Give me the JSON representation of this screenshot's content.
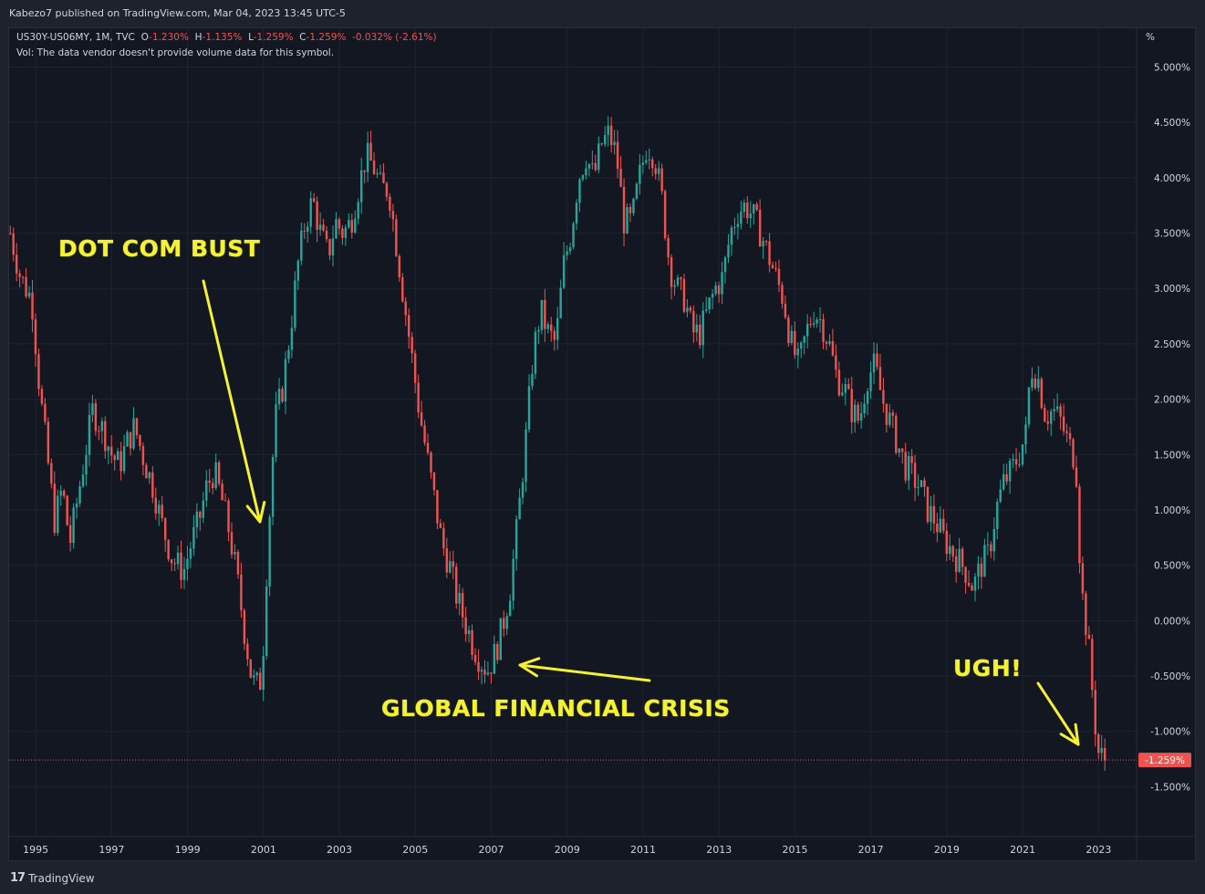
{
  "header": {
    "published_text": "Kabezo7 published on TradingView.com, Mar 04, 2023 13:45 UTC-5"
  },
  "legend": {
    "symbol": "US30Y-US06MY, 1M, TVC",
    "open_label": "O",
    "open_value": "-1.230%",
    "high_label": "H",
    "high_value": "-1.135%",
    "low_label": "L",
    "low_value": "-1.259%",
    "close_label": "C",
    "close_value": "-1.259%",
    "change": "-0.032% (-2.61%)",
    "volume_note": "Vol: The data vendor doesn't provide volume data for this symbol."
  },
  "axis": {
    "unit": "%",
    "current_price_label": "-1.259%"
  },
  "annotations": {
    "dot_com": "DOT COM BUST",
    "gfc": "GLOBAL FINANCIAL CRISIS",
    "ugh": "UGH!"
  },
  "footer": {
    "brand": "TradingView",
    "logo": "17"
  },
  "colors": {
    "up": "#26a69a",
    "down": "#ef5350",
    "annotation": "#f5f230",
    "background": "#131722",
    "grid": "#1f2330"
  },
  "chart_data": {
    "type": "candlestick",
    "title": "US30Y-US06MY, 1M, TVC",
    "ylabel": "%",
    "ylim": [
      -1.95,
      5.35
    ],
    "xlim": [
      1994.3,
      2024.0
    ],
    "x_ticks": [
      1995,
      1997,
      1999,
      2001,
      2003,
      2005,
      2007,
      2009,
      2011,
      2013,
      2015,
      2017,
      2019,
      2021,
      2023
    ],
    "x_tick_labels": [
      "1995",
      "1997",
      "1999",
      "2001",
      "2003",
      "2005",
      "2007",
      "2009",
      "2011",
      "2013",
      "2015",
      "2017",
      "2019",
      "2021",
      "2023"
    ],
    "y_ticks": [
      5.0,
      4.5,
      4.0,
      3.5,
      3.0,
      2.5,
      2.0,
      1.5,
      1.0,
      0.5,
      0.0,
      -0.5,
      -1.0,
      -1.5
    ],
    "y_tick_labels": [
      "5.000%",
      "4.500%",
      "4.000%",
      "3.500%",
      "3.000%",
      "2.500%",
      "2.000%",
      "1.500%",
      "1.000%",
      "0.500%",
      "0.000%",
      "-0.500%",
      "-1.000%",
      "-1.500%"
    ],
    "current_value": -1.259,
    "series": [
      {
        "name": "US30Y-US06MY",
        "points": [
          [
            1994.33,
            3.5
          ],
          [
            1994.6,
            3.1
          ],
          [
            1994.9,
            2.9
          ],
          [
            1995.1,
            2.1
          ],
          [
            1995.3,
            1.5
          ],
          [
            1995.5,
            0.9
          ],
          [
            1995.7,
            1.2
          ],
          [
            1995.9,
            0.7
          ],
          [
            1996.1,
            1.1
          ],
          [
            1996.3,
            1.5
          ],
          [
            1996.5,
            1.9
          ],
          [
            1996.8,
            1.7
          ],
          [
            1997.0,
            1.5
          ],
          [
            1997.2,
            1.4
          ],
          [
            1997.4,
            1.6
          ],
          [
            1997.6,
            1.75
          ],
          [
            1997.9,
            1.4
          ],
          [
            1998.1,
            1.2
          ],
          [
            1998.3,
            0.9
          ],
          [
            1998.6,
            0.55
          ],
          [
            1998.9,
            0.45
          ],
          [
            1999.1,
            0.7
          ],
          [
            1999.3,
            0.9
          ],
          [
            1999.5,
            1.2
          ],
          [
            1999.7,
            1.35
          ],
          [
            1999.9,
            1.1
          ],
          [
            2000.1,
            0.8
          ],
          [
            2000.3,
            0.4
          ],
          [
            2000.5,
            -0.1
          ],
          [
            2000.7,
            -0.55
          ],
          [
            2000.9,
            -0.6
          ],
          [
            2001.0,
            -0.2
          ],
          [
            2001.1,
            0.6
          ],
          [
            2001.3,
            1.8
          ],
          [
            2001.5,
            2.1
          ],
          [
            2001.7,
            2.6
          ],
          [
            2001.9,
            3.2
          ],
          [
            2002.1,
            3.6
          ],
          [
            2002.3,
            3.8
          ],
          [
            2002.5,
            3.5
          ],
          [
            2002.7,
            3.3
          ],
          [
            2002.9,
            3.6
          ],
          [
            2003.1,
            3.5
          ],
          [
            2003.3,
            3.6
          ],
          [
            2003.5,
            3.9
          ],
          [
            2003.7,
            4.2
          ],
          [
            2003.9,
            4.1
          ],
          [
            2004.1,
            3.9
          ],
          [
            2004.3,
            3.9
          ],
          [
            2004.5,
            3.4
          ],
          [
            2004.7,
            2.9
          ],
          [
            2004.9,
            2.4
          ],
          [
            2005.1,
            1.9
          ],
          [
            2005.3,
            1.5
          ],
          [
            2005.5,
            1.1
          ],
          [
            2005.7,
            0.7
          ],
          [
            2005.9,
            0.5
          ],
          [
            2006.1,
            0.2
          ],
          [
            2006.3,
            0.0
          ],
          [
            2006.5,
            -0.2
          ],
          [
            2006.7,
            -0.35
          ],
          [
            2006.9,
            -0.45
          ],
          [
            2007.1,
            -0.3
          ],
          [
            2007.3,
            -0.05
          ],
          [
            2007.5,
            0.3
          ],
          [
            2007.7,
            0.9
          ],
          [
            2007.9,
            1.6
          ],
          [
            2008.1,
            2.4
          ],
          [
            2008.3,
            2.8
          ],
          [
            2008.5,
            2.6
          ],
          [
            2008.7,
            2.5
          ],
          [
            2008.9,
            3.2
          ],
          [
            2009.1,
            3.5
          ],
          [
            2009.3,
            4.0
          ],
          [
            2009.5,
            4.2
          ],
          [
            2009.7,
            4.0
          ],
          [
            2009.9,
            4.3
          ],
          [
            2010.1,
            4.4
          ],
          [
            2010.3,
            4.2
          ],
          [
            2010.5,
            3.6
          ],
          [
            2010.7,
            3.6
          ],
          [
            2010.9,
            4.0
          ],
          [
            2011.1,
            4.3
          ],
          [
            2011.3,
            4.2
          ],
          [
            2011.5,
            3.8
          ],
          [
            2011.7,
            3.2
          ],
          [
            2011.9,
            3.0
          ],
          [
            2012.1,
            2.9
          ],
          [
            2012.3,
            2.6
          ],
          [
            2012.5,
            2.6
          ],
          [
            2012.7,
            2.8
          ],
          [
            2012.9,
            3.0
          ],
          [
            2013.1,
            3.1
          ],
          [
            2013.3,
            3.5
          ],
          [
            2013.5,
            3.7
          ],
          [
            2013.7,
            3.75
          ],
          [
            2013.9,
            3.65
          ],
          [
            2014.1,
            3.5
          ],
          [
            2014.3,
            3.3
          ],
          [
            2014.5,
            3.1
          ],
          [
            2014.7,
            2.9
          ],
          [
            2014.9,
            2.5
          ],
          [
            2015.1,
            2.3
          ],
          [
            2015.3,
            2.6
          ],
          [
            2015.5,
            2.8
          ],
          [
            2015.7,
            2.7
          ],
          [
            2015.9,
            2.5
          ],
          [
            2016.1,
            2.2
          ],
          [
            2016.3,
            2.1
          ],
          [
            2016.5,
            1.9
          ],
          [
            2016.7,
            1.8
          ],
          [
            2016.9,
            2.2
          ],
          [
            2017.1,
            2.3
          ],
          [
            2017.3,
            2.0
          ],
          [
            2017.5,
            1.8
          ],
          [
            2017.7,
            1.6
          ],
          [
            2017.9,
            1.4
          ],
          [
            2018.1,
            1.3
          ],
          [
            2018.3,
            1.2
          ],
          [
            2018.5,
            1.0
          ],
          [
            2018.7,
            0.9
          ],
          [
            2018.9,
            0.75
          ],
          [
            2019.1,
            0.65
          ],
          [
            2019.3,
            0.55
          ],
          [
            2019.5,
            0.45
          ],
          [
            2019.7,
            0.3
          ],
          [
            2019.9,
            0.5
          ],
          [
            2020.1,
            0.6
          ],
          [
            2020.3,
            1.0
          ],
          [
            2020.5,
            1.25
          ],
          [
            2020.7,
            1.35
          ],
          [
            2020.9,
            1.5
          ],
          [
            2021.1,
            1.7
          ],
          [
            2021.2,
            2.3
          ],
          [
            2021.4,
            2.2
          ],
          [
            2021.6,
            1.85
          ],
          [
            2021.8,
            1.9
          ],
          [
            2022.0,
            1.8
          ],
          [
            2022.2,
            1.6
          ],
          [
            2022.4,
            1.45
          ],
          [
            2022.5,
            0.6
          ],
          [
            2022.6,
            0.1
          ],
          [
            2022.7,
            -0.1
          ],
          [
            2022.8,
            -0.5
          ],
          [
            2022.9,
            -0.9
          ],
          [
            2023.0,
            -1.2
          ],
          [
            2023.17,
            -1.259
          ]
        ]
      }
    ]
  }
}
